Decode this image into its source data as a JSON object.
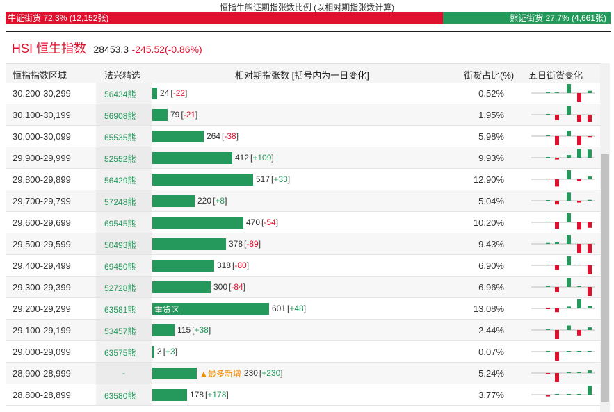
{
  "ratio": {
    "title": "恒指牛熊证期指张数比例 (以相对期指张数计算)",
    "bull_label": "牛证街货 72.3% (12,152张)",
    "bear_label": "熊证街货 27.7% (4,661张)",
    "bull_fraction": 0.723,
    "bear_fraction": 0.277
  },
  "index": {
    "name": "HSI 恒生指数",
    "price": "28453.3",
    "change": "-245.52(-0.86%)"
  },
  "table": {
    "headers": {
      "range": "恒指指数区域",
      "pick": "法兴精选",
      "contracts": "相对期指张数 [括号内为一日变化]",
      "ratio": "街货占比(%)",
      "five_day": "五日街货变化"
    },
    "rows": [
      {
        "range": "30,200-30,299",
        "symbol": "56434熊",
        "contracts": "24",
        "change": "-22",
        "pct": "0.52%",
        "spark": [
          0,
          0,
          1,
          -1,
          0.25
        ]
      },
      {
        "range": "30,100-30,199",
        "symbol": "56908熊",
        "contracts": "79",
        "change": "-21",
        "pct": "1.95%",
        "spark": [
          0,
          -0.6,
          1,
          -0.8,
          -0.8
        ]
      },
      {
        "range": "30,000-30,099",
        "symbol": "65535熊",
        "contracts": "264",
        "change": "-38",
        "pct": "5.98%",
        "spark": [
          0,
          -1,
          0.6,
          -1,
          -0.1
        ]
      },
      {
        "range": "29,900-29,999",
        "symbol": "52552熊",
        "contracts": "412",
        "change": "+109",
        "pct": "9.93%",
        "spark": [
          0,
          -0.2,
          0.3,
          1,
          0.9
        ]
      },
      {
        "range": "29,800-29,899",
        "symbol": "56429熊",
        "contracts": "517",
        "change": "+33",
        "pct": "12.90%",
        "spark": [
          0,
          -0.8,
          1,
          -0.2,
          0.3
        ]
      },
      {
        "range": "29,700-29,799",
        "symbol": "57248熊",
        "contracts": "220",
        "change": "+8",
        "pct": "5.04%",
        "spark": [
          0,
          -0.4,
          0.9,
          -0.2,
          0.1
        ]
      },
      {
        "range": "29,600-29,699",
        "symbol": "69545熊",
        "contracts": "470",
        "change": "-54",
        "pct": "10.20%",
        "spark": [
          0,
          -0.7,
          1,
          -0.8,
          -0.6
        ]
      },
      {
        "range": "29,500-29,599",
        "symbol": "50493熊",
        "contracts": "378",
        "change": "-89",
        "pct": "9.43%",
        "spark": [
          0.1,
          0.15,
          1,
          -1,
          -1
        ]
      },
      {
        "range": "29,400-29,499",
        "symbol": "69450熊",
        "contracts": "318",
        "change": "-80",
        "pct": "6.90%",
        "spark": [
          0,
          -0.5,
          1,
          0.05,
          -1
        ]
      },
      {
        "range": "29,300-29,399",
        "symbol": "52728熊",
        "contracts": "300",
        "change": "-84",
        "pct": "6.96%",
        "spark": [
          0,
          -0.6,
          1,
          0.03,
          -1
        ]
      },
      {
        "range": "29,200-29,299",
        "symbol": "63581熊",
        "contracts": "601",
        "change": "+48",
        "pct": "13.08%",
        "spark": [
          -0.05,
          -0.4,
          0.2,
          1,
          0.3
        ],
        "label": "重货区"
      },
      {
        "range": "29,100-29,199",
        "symbol": "53457熊",
        "contracts": "115",
        "change": "+38",
        "pct": "2.44%",
        "spark": [
          0,
          -1,
          0.5,
          -0.6,
          0.3
        ]
      },
      {
        "range": "29,000-29,099",
        "symbol": "63575熊",
        "contracts": "3",
        "change": "+3",
        "pct": "0.07%",
        "spark": [
          0,
          -1,
          0,
          0,
          0.05
        ]
      },
      {
        "range": "28,900-28,999",
        "symbol": "-",
        "contracts": "230",
        "change": "+230",
        "pct": "5.24%",
        "spark": [
          -0.1,
          -1,
          0,
          0,
          0.3
        ],
        "flag": "▲最多新增"
      },
      {
        "range": "28,800-28,899",
        "symbol": "63580熊",
        "contracts": "178",
        "change": "+178",
        "pct": "3.77%",
        "spark": [
          -0.2,
          0,
          0,
          0,
          1
        ]
      }
    ]
  },
  "colors": {
    "bull": "#e0102f",
    "bear": "#25995c",
    "text": "#333333"
  }
}
